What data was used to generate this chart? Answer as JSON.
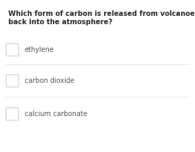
{
  "question_line1": "Which form of carbon is released from volcanoes",
  "question_line2": "back into the atmosphere?",
  "options": [
    "ethylene",
    "carbon dioxide",
    "calcium carbonate"
  ],
  "bg_color": "#ffffff",
  "question_color": "#2a2a2a",
  "option_color": "#555555",
  "checkbox_edge_color": "#cccccc",
  "checkbox_fill_color": "#ffffff",
  "separator_color": "#e0e0e0",
  "question_fontsize": 7.2,
  "option_fontsize": 7.0,
  "figwidth": 2.83,
  "figheight": 2.2,
  "dpi": 100
}
